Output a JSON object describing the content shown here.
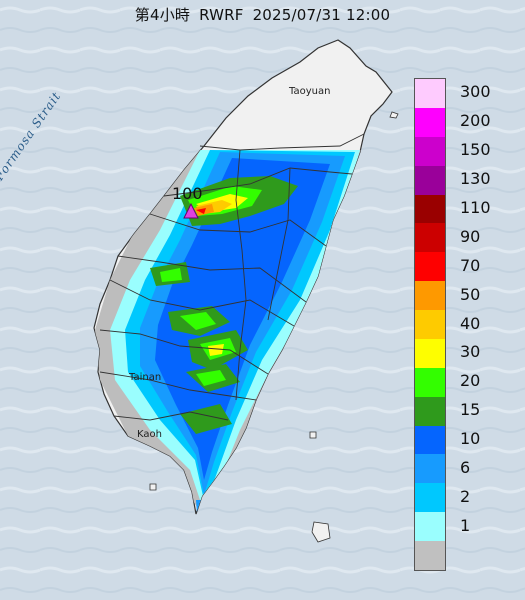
{
  "title": {
    "period": "第4小時",
    "model": "RWRF",
    "datetime": "2025/07/31 12:00"
  },
  "map": {
    "labels": {
      "strait": "Formosa Strait",
      "city_north": "Taoyuan",
      "city_central": "Tainan",
      "city_south": "Kaoh"
    },
    "max_marker": {
      "value": "100",
      "symbol": "triangle",
      "color": "#e040e0"
    }
  },
  "legend": {
    "entries": [
      {
        "label": "300",
        "color": "#fecbfe"
      },
      {
        "label": "200",
        "color": "#fe00fe"
      },
      {
        "label": "150",
        "color": "#cc00cc"
      },
      {
        "label": "130",
        "color": "#9a009a"
      },
      {
        "label": "110",
        "color": "#9a0000"
      },
      {
        "label": "90",
        "color": "#cc0000"
      },
      {
        "label": "70",
        "color": "#fe0000"
      },
      {
        "label": "50",
        "color": "#fe9900"
      },
      {
        "label": "40",
        "color": "#fecb00"
      },
      {
        "label": "30",
        "color": "#fefe00"
      },
      {
        "label": "20",
        "color": "#33fe00"
      },
      {
        "label": "15",
        "color": "#2f9a1c"
      },
      {
        "label": "10",
        "color": "#0565fe"
      },
      {
        "label": "6",
        "color": "#179bfe"
      },
      {
        "label": "2",
        "color": "#00c8fe"
      },
      {
        "label": "1",
        "color": "#9afefe"
      },
      {
        "label": "",
        "color": "#c0c0c0"
      }
    ]
  },
  "colors": {
    "sea": "#cfdbe6",
    "land": "#f1f1f1",
    "no_rain": "#bdbdbd",
    "county_border": "#333333"
  }
}
